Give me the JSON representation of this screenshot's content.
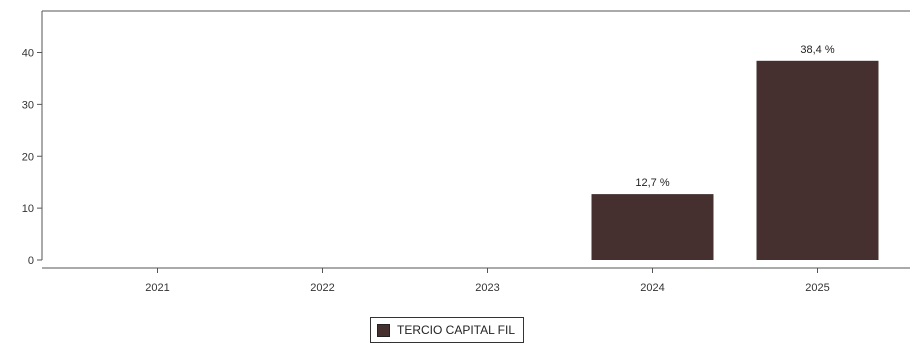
{
  "chart_data": {
    "type": "bar",
    "categories": [
      "2021",
      "2022",
      "2023",
      "2024",
      "2025"
    ],
    "series": [
      {
        "name": "TERCIO CAPITAL FIL",
        "values": [
          null,
          null,
          null,
          12.7,
          38.4
        ],
        "labels": [
          "",
          "",
          "",
          "12,7 %",
          "38,4 %"
        ],
        "color": "#45302f"
      }
    ],
    "ylim": [
      0,
      48
    ],
    "yticks": [
      "0",
      "10",
      "20",
      "30",
      "40"
    ],
    "legend_position": "bottom-center",
    "grid": false
  }
}
